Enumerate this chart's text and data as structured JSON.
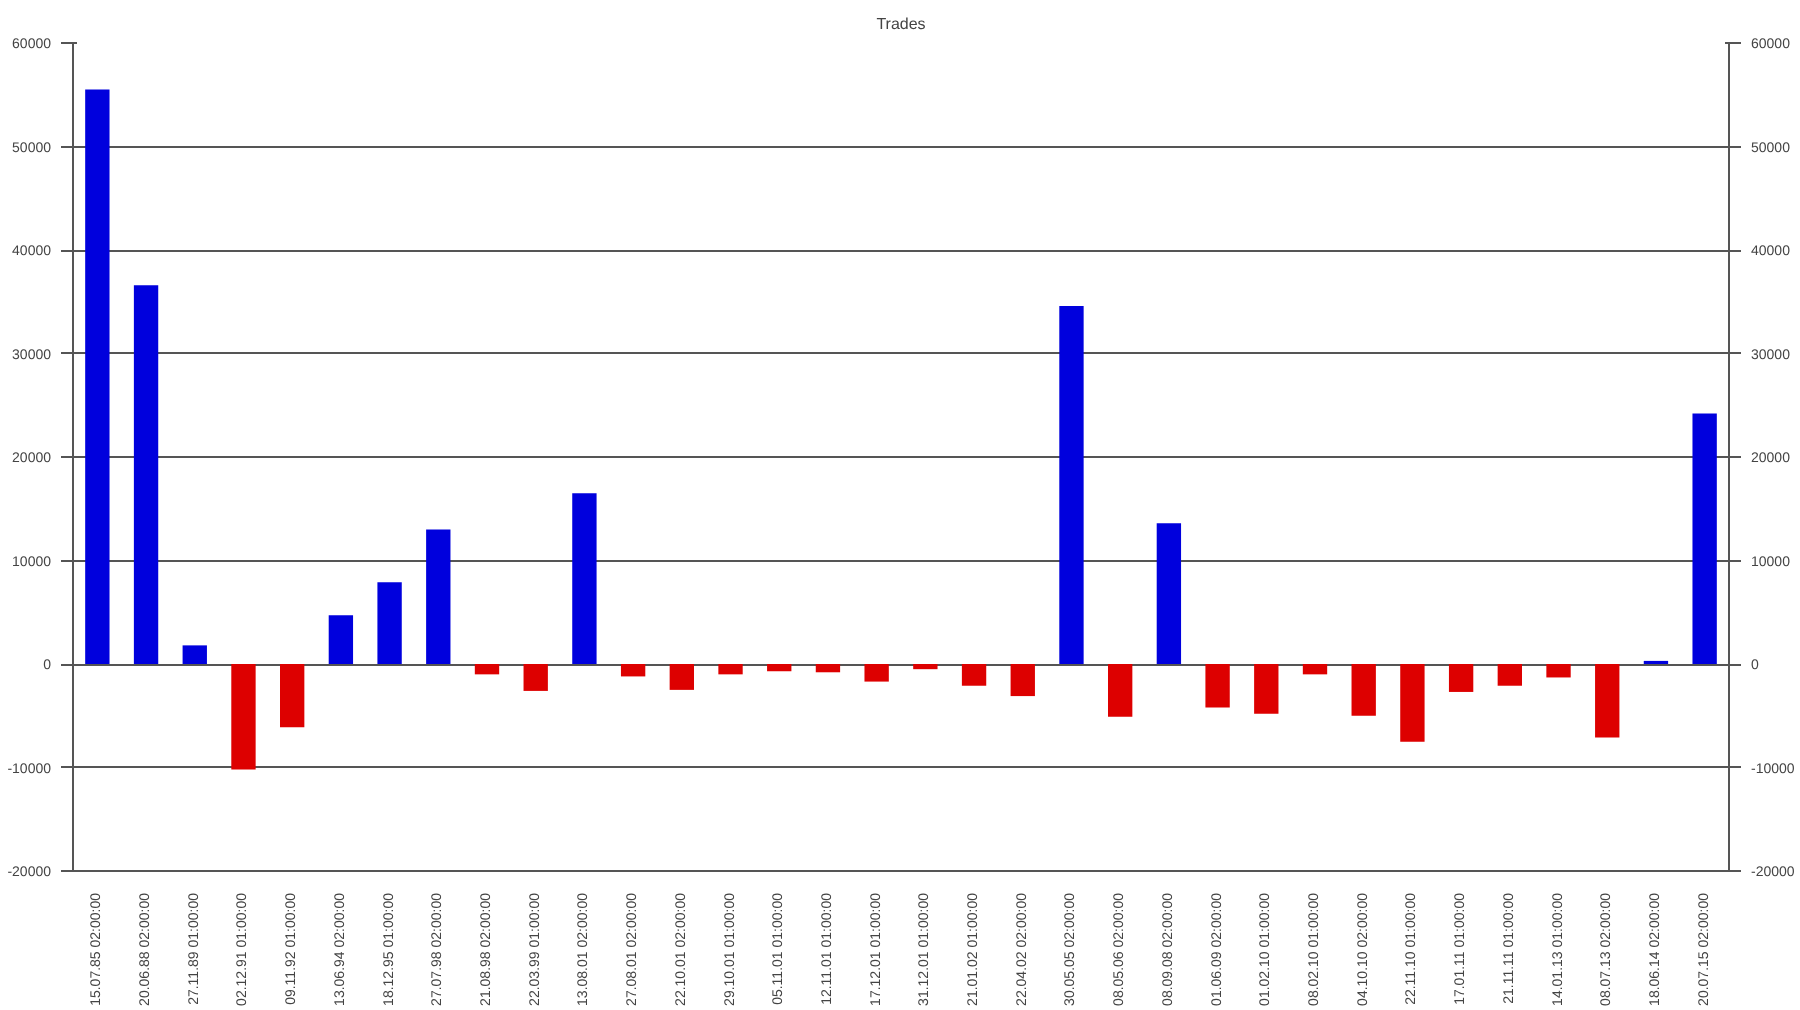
{
  "chart_data": {
    "type": "bar",
    "title": "Trades",
    "categories": [
      "15.07.85 02:00:00",
      "20.06.88 02:00:00",
      "27.11.89 01:00:00",
      "02.12.91 01:00:00",
      "09.11.92 01:00:00",
      "13.06.94 02:00:00",
      "18.12.95 01:00:00",
      "27.07.98 02:00:00",
      "21.08.98 02:00:00",
      "22.03.99 01:00:00",
      "13.08.01 02:00:00",
      "27.08.01 02:00:00",
      "22.10.01 02:00:00",
      "29.10.01 01:00:00",
      "05.11.01 01:00:00",
      "12.11.01 01:00:00",
      "17.12.01 01:00:00",
      "31.12.01 01:00:00",
      "21.01.02 01:00:00",
      "22.04.02 02:00:00",
      "30.05.05 02:00:00",
      "08.05.06 02:00:00",
      "08.09.08 02:00:00",
      "01.06.09 02:00:00",
      "01.02.10 01:00:00",
      "08.02.10 01:00:00",
      "04.10.10 02:00:00",
      "22.11.10 01:00:00",
      "17.01.11 01:00:00",
      "21.11.11 01:00:00",
      "14.01.13 01:00:00",
      "08.07.13 02:00:00",
      "18.06.14 02:00:00",
      "20.07.15 02:00:00"
    ],
    "values": [
      55500,
      36600,
      1800,
      -10200,
      -6100,
      4700,
      7900,
      13000,
      -1000,
      -2600,
      16500,
      -1200,
      -2500,
      -1000,
      -700,
      -800,
      -1700,
      -500,
      -2100,
      -3100,
      34600,
      -5100,
      13600,
      -4200,
      -4800,
      -1000,
      -5000,
      -7500,
      -2700,
      -2100,
      -1300,
      -7100,
      300,
      24200
    ],
    "colors": [
      "#0000dd",
      "#0000dd",
      "#0000dd",
      "#dd0000",
      "#dd0000",
      "#0000dd",
      "#0000dd",
      "#0000dd",
      "#dd0000",
      "#dd0000",
      "#0000dd",
      "#dd0000",
      "#dd0000",
      "#dd0000",
      "#dd0000",
      "#dd0000",
      "#dd0000",
      "#dd0000",
      "#dd0000",
      "#dd0000",
      "#0000dd",
      "#dd0000",
      "#0000dd",
      "#dd0000",
      "#dd0000",
      "#dd0000",
      "#dd0000",
      "#dd0000",
      "#dd0000",
      "#dd0000",
      "#dd0000",
      "#dd0000",
      "#0000dd",
      "#0000dd"
    ],
    "ylim": [
      -20000,
      60000
    ],
    "yticks": [
      -20000,
      -10000,
      0,
      10000,
      20000,
      30000,
      40000,
      50000,
      60000
    ],
    "y2lim": [
      -20000,
      60000
    ],
    "y2ticks": [
      -20000,
      -10000,
      0,
      10000,
      20000,
      30000,
      40000,
      50000,
      60000
    ],
    "grid": "y"
  }
}
